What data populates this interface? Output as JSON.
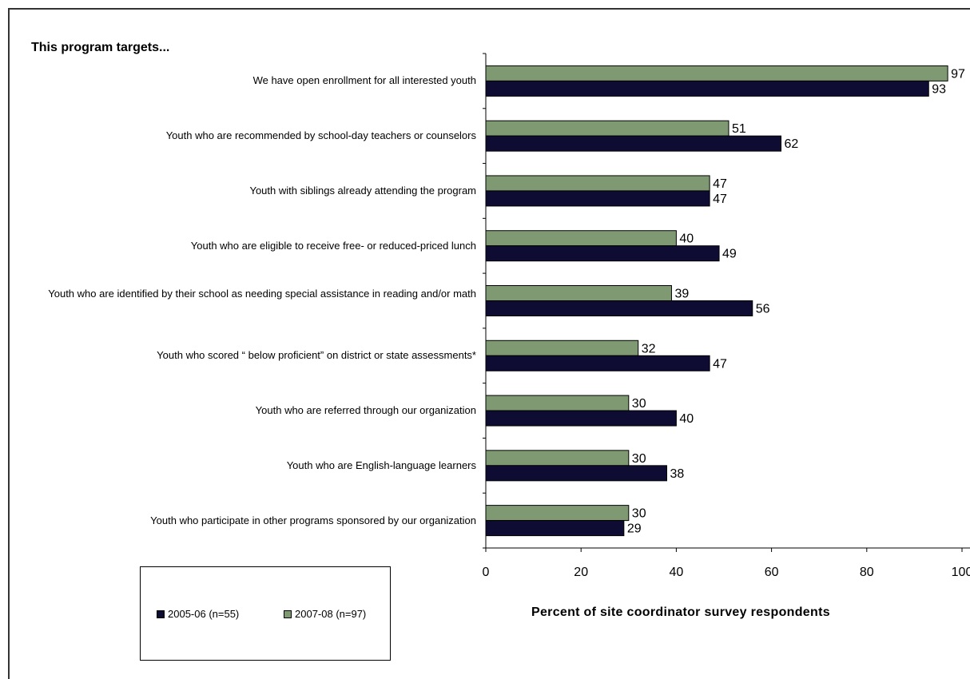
{
  "colors": {
    "series_2005": "#0f0c33",
    "series_2007": "#7f9a73"
  },
  "chart_data": {
    "type": "bar",
    "orientation": "horizontal",
    "title": "This program targets...",
    "xlabel": "Percent of site coordinator survey respondents",
    "ylabel": "",
    "xlim": [
      0,
      100
    ],
    "xticks": [
      0,
      20,
      40,
      60,
      80,
      100
    ],
    "xtick_labels": [
      "0",
      "20",
      "40",
      "60",
      "80",
      "100"
    ],
    "legend_position": "bottom-left",
    "grid": false,
    "categories": [
      "We have open enrollment for all interested youth",
      "Youth who are recommended by school-day teachers or counselors",
      "Youth with siblings already attending the program",
      "Youth who are eligible to receive free- or reduced-priced lunch",
      "Youth who are identified by their school as needing special assistance in reading and/or math",
      "Youth who scored “ below proficient” on district or state assessments*",
      "Youth who are referred through our organization",
      "Youth who are English-language learners",
      "Youth who participate in other programs sponsored by our organization"
    ],
    "series": [
      {
        "name": "2007-08 (n=97)",
        "values": [
          97,
          51,
          47,
          40,
          39,
          32,
          30,
          30,
          30
        ]
      },
      {
        "name": "2005-06 (n=55)",
        "values": [
          93,
          62,
          47,
          49,
          56,
          47,
          40,
          38,
          29
        ]
      }
    ]
  }
}
